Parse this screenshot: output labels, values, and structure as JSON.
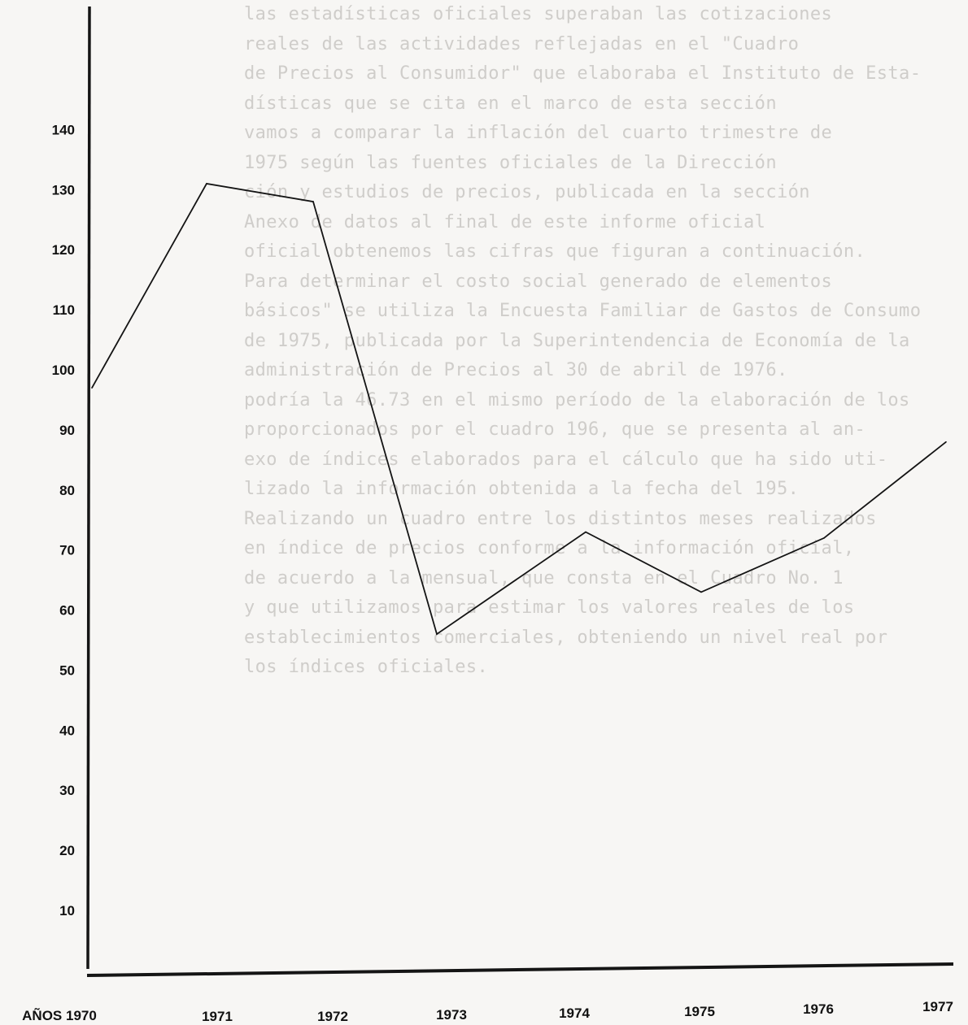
{
  "background_text": [
    "las estadísticas oficiales superaban las cotizaciones",
    "reales de las actividades reflejadas en el \"Cuadro",
    "de Precios al Consumidor\" que elaboraba el Instituto de Esta-",
    "dísticas que se cita en el marco de esta sección",
    "vamos a comparar la inflación del cuarto trimestre de",
    "1975 según las fuentes oficiales de la Dirección",
    "ción y estudios de precios, publicada en la sección",
    "Anexo de datos al final de este informe oficial",
    "oficial obtenemos las cifras que figuran a continuación.",
    "Para determinar el costo social generado de elementos",
    "básicos\" se utiliza la Encuesta Familiar de Gastos de Consumo",
    "de 1975, publicada por la Superintendencia de Economía de la",
    "administración de Precios al 30 de abril de 1976.",
    "podría la 46.73 en el mismo período de la elaboración de los",
    "proporcionados por el cuadro 196, que se presenta al an-",
    "exo de índices elaborados para el cálculo que ha sido uti-",
    "lizado la información obtenida a la fecha del 195.",
    "",
    "Realizando un cuadro entre los distintos meses realizados",
    "en índice de precios conforme a la información oficial,",
    "de acuerdo a la mensual, que consta en el Cuadro No. 1",
    "y que utilizamos para estimar los valores reales de los",
    "establecimientos comerciales, obteniendo un nivel real por",
    "los índices oficiales."
  ],
  "chart_data": {
    "type": "line",
    "title": "",
    "xlabel": "AÑOS",
    "ylabel": "",
    "x": [
      "1970",
      "1971",
      "1972",
      "1973",
      "1974",
      "1975",
      "1976",
      "1977"
    ],
    "y_ticks": [
      10,
      20,
      30,
      40,
      50,
      60,
      70,
      80,
      90,
      100,
      110,
      120,
      130,
      140
    ],
    "y_tick_labels": [
      "10",
      "20",
      "30",
      "40",
      "50",
      "60",
      "70",
      "80",
      "90",
      "100",
      "110",
      "120",
      "130",
      "140"
    ],
    "x_tick_labels": [
      "AÑOS 1970",
      "1971",
      "1972",
      "1973",
      "1974",
      "1975",
      "1976",
      "1977"
    ],
    "ylim": [
      0,
      155
    ],
    "grid": false,
    "series": [
      {
        "points": [
          {
            "x": "1970",
            "y": 97
          },
          {
            "x": "1971",
            "y": 131
          },
          {
            "x": "1972",
            "y": 128
          },
          {
            "x": "1973",
            "y": 56
          },
          {
            "x": "1974",
            "y": 73
          },
          {
            "x": "1975",
            "y": 63
          },
          {
            "x": "1976",
            "y": 72
          },
          {
            "x": "1977",
            "y": 88
          }
        ]
      }
    ]
  }
}
